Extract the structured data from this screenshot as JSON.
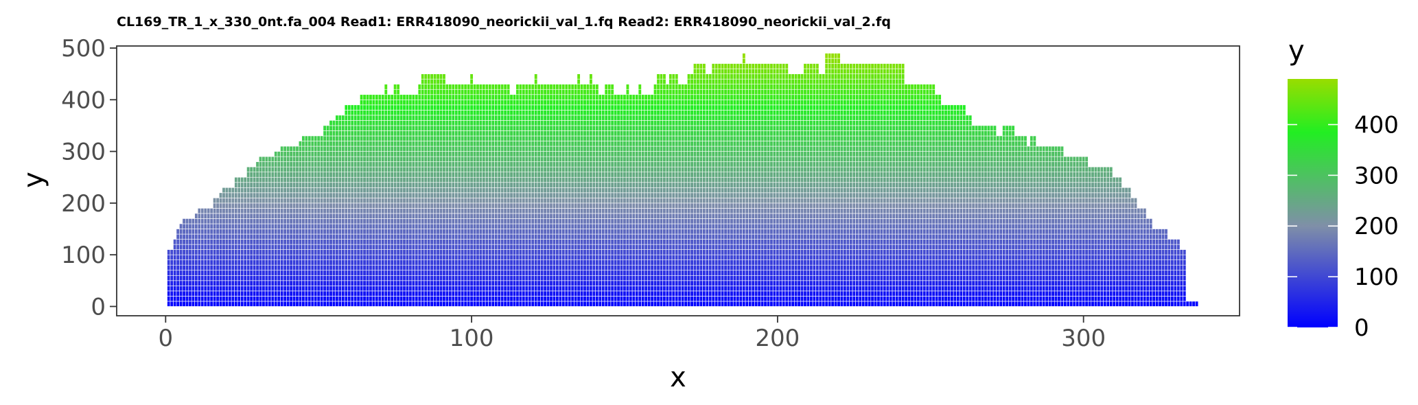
{
  "chart_data": {
    "type": "bar",
    "title": "CL169_TR_1_x_330_0nt.fa_004 Read1: ERR418090_neorickii_val_1.fq Read2: ERR418090_neorickii_val_2.fq",
    "xlabel": "x",
    "ylabel": "y",
    "xlim": [
      -16,
      351
    ],
    "ylim": [
      -18,
      504
    ],
    "x_ticks": [
      0,
      100,
      200,
      300
    ],
    "y_ticks": [
      0,
      100,
      200,
      300,
      400,
      500
    ],
    "grid": false,
    "bar_width": 1,
    "fill_gradient": {
      "variable": "y",
      "stops": [
        {
          "value": 0,
          "color": "#0000ff"
        },
        {
          "value": 200,
          "color": "#7f8fa8"
        },
        {
          "value": 385,
          "color": "#22ee22"
        },
        {
          "value": 490,
          "color": "#99dd00"
        }
      ]
    },
    "legend": {
      "title": "y",
      "position": "right",
      "ticks": [
        0,
        100,
        200,
        300,
        400
      ]
    },
    "series": [
      {
        "x_start": 1,
        "values": [
          110,
          110,
          130,
          150,
          160,
          170,
          170,
          170,
          170,
          180,
          190,
          190,
          190,
          190,
          190,
          210,
          210,
          220,
          230,
          230,
          230,
          230,
          250,
          250,
          250,
          250,
          270,
          270,
          270,
          280,
          290,
          290,
          290,
          290,
          290,
          300,
          300,
          310,
          310,
          310,
          310,
          310,
          310,
          320,
          330,
          330,
          330,
          330,
          330,
          330,
          330,
          350,
          350,
          360,
          360,
          370,
          370,
          370,
          390,
          390,
          390,
          390,
          390,
          410,
          410,
          410,
          410,
          410,
          410,
          410,
          410,
          430,
          410,
          410,
          430,
          430,
          410,
          410,
          410,
          410,
          410,
          410,
          430,
          450,
          450,
          450,
          450,
          450,
          450,
          450,
          450,
          430,
          430,
          430,
          430,
          430,
          430,
          430,
          430,
          450,
          430,
          430,
          430,
          430,
          430,
          430,
          430,
          430,
          430,
          430,
          430,
          430,
          410,
          410,
          430,
          430,
          430,
          430,
          430,
          430,
          450,
          430,
          430,
          430,
          430,
          430,
          430,
          430,
          430,
          430,
          430,
          430,
          430,
          430,
          450,
          430,
          430,
          430,
          450,
          430,
          430,
          410,
          410,
          430,
          430,
          430,
          410,
          410,
          410,
          410,
          430,
          410,
          410,
          410,
          430,
          410,
          410,
          410,
          410,
          430,
          450,
          450,
          450,
          430,
          450,
          450,
          450,
          430,
          430,
          430,
          450,
          450,
          470,
          470,
          470,
          470,
          450,
          450,
          470,
          470,
          470,
          470,
          470,
          470,
          470,
          470,
          470,
          470,
          490,
          470,
          470,
          470,
          470,
          470,
          470,
          470,
          470,
          470,
          470,
          470,
          470,
          470,
          470,
          450,
          450,
          450,
          450,
          450,
          470,
          470,
          470,
          470,
          470,
          450,
          450,
          490,
          490,
          490,
          490,
          490,
          470,
          470,
          470,
          470,
          470,
          470,
          470,
          470,
          470,
          470,
          470,
          470,
          470,
          470,
          470,
          470,
          470,
          470,
          470,
          470,
          470,
          430,
          430,
          430,
          430,
          430,
          430,
          430,
          430,
          430,
          430,
          410,
          410,
          390,
          390,
          390,
          390,
          390,
          390,
          390,
          390,
          370,
          370,
          350,
          350,
          350,
          350,
          350,
          350,
          350,
          350,
          330,
          330,
          350,
          350,
          350,
          350,
          330,
          330,
          330,
          330,
          310,
          330,
          330,
          310,
          310,
          310,
          310,
          310,
          310,
          310,
          310,
          310,
          290,
          290,
          290,
          290,
          290,
          290,
          290,
          290,
          270,
          270,
          270,
          270,
          270,
          270,
          270,
          270,
          250,
          250,
          250,
          230,
          230,
          230,
          210,
          210,
          190,
          190,
          190,
          170,
          170,
          150,
          150,
          150,
          150,
          150,
          130,
          130,
          130,
          130,
          110,
          110,
          10,
          10,
          10,
          10
        ]
      }
    ]
  }
}
